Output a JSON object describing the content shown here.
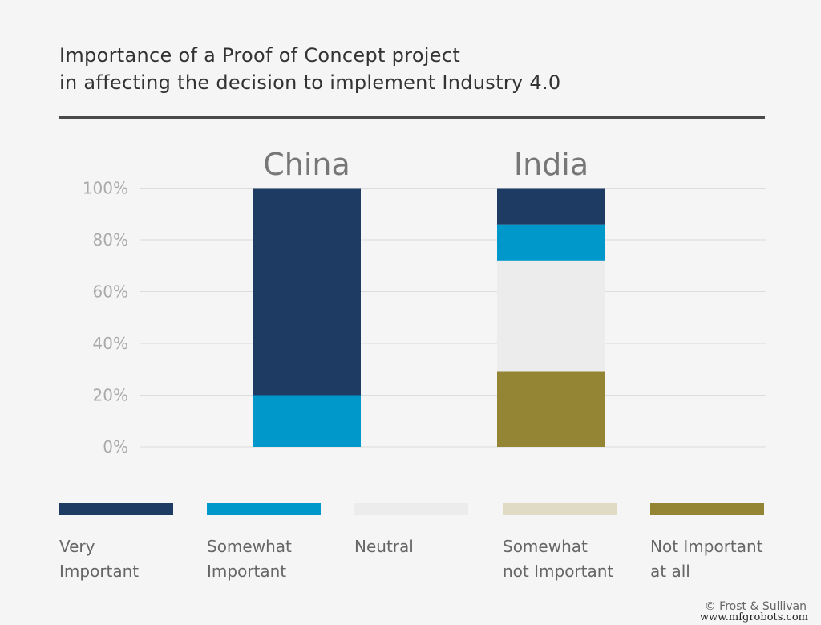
{
  "title_lines": [
    "Importance of a Proof of Concept project",
    "in affecting the decision to implement Industry 4.0"
  ],
  "credit": "© Frost & Sullivan",
  "watermark": "www.mfgrobots.com",
  "chart_data": {
    "type": "bar",
    "stacked": true,
    "title": "Importance of a Proof of Concept project in affecting the decision to implement Industry 4.0",
    "categories": [
      "China",
      "India"
    ],
    "ylim": [
      0,
      100
    ],
    "yticks": [
      "0%",
      "20%",
      "40%",
      "60%",
      "80%",
      "100%"
    ],
    "grid": true,
    "legend_placement": "bottom",
    "series": [
      {
        "name": "Not Important at all",
        "color": "#938534",
        "values": [
          0,
          29
        ]
      },
      {
        "name": "Somewhat not Important",
        "color": "#e0dbc4",
        "values": [
          0,
          0
        ]
      },
      {
        "name": "Neutral",
        "color": "#ececec",
        "values": [
          0,
          43
        ]
      },
      {
        "name": "Somewhat Important",
        "color": "#0098cb",
        "values": [
          20,
          14
        ]
      },
      {
        "name": "Very Important",
        "color": "#1e3b64",
        "values": [
          80,
          14
        ]
      }
    ],
    "legend": [
      {
        "label": "Very\nImportant",
        "color": "#1e3b64"
      },
      {
        "label": "Somewhat\nImportant",
        "color": "#0098cb"
      },
      {
        "label": "Neutral",
        "color": "#ececec"
      },
      {
        "label": "Somewhat\nnot Important",
        "color": "#e0dbc4"
      },
      {
        "label": "Not Important\nat all",
        "color": "#938534"
      }
    ]
  }
}
